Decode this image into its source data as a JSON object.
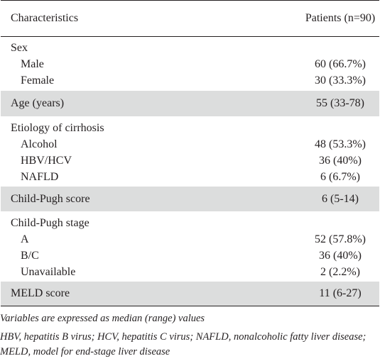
{
  "table": {
    "header": {
      "col1": "Characteristics",
      "col2": "Patients (n=90)"
    },
    "sex": {
      "label": "Sex",
      "male_label": "Male",
      "male_value": "60 (66.7%)",
      "female_label": "Female",
      "female_value": "30 (33.3%)"
    },
    "age": {
      "label": "Age (years)",
      "value": "55 (33-78)"
    },
    "etiology": {
      "label": "Etiology of cirrhosis",
      "alcohol_label": "Alcohol",
      "alcohol_value": "48 (53.3%)",
      "hbv_label": "HBV/HCV",
      "hbv_value": "36 (40%)",
      "nafld_label": "NAFLD",
      "nafld_value": "6 (6.7%)"
    },
    "child_pugh_score": {
      "label": "Child-Pugh score",
      "value": "6 (5-14)"
    },
    "child_pugh_stage": {
      "label": "Child-Pugh stage",
      "a_label": "A",
      "a_value": "52 (57.8%)",
      "bc_label": "B/C",
      "bc_value": "36 (40%)",
      "unavailable_label": "Unavailable",
      "unavailable_value": "2 (2.2%)"
    },
    "meld": {
      "label": "MELD score",
      "value": "11 (6-27)"
    }
  },
  "footnotes": {
    "note1": "Variables are expressed as median (range) values",
    "note2": "HBV, hepatitis B virus; HCV, hepatitis C virus; NAFLD, nonalcoholic fatty liver disease; MELD, model for end-stage liver disease"
  }
}
